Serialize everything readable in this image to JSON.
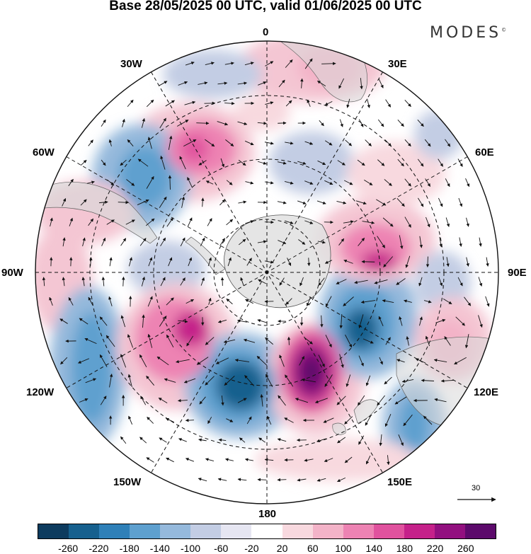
{
  "header": {
    "title": "Base 28/05/2025 00 UTC, valid 01/06/2025 00 UTC",
    "brand": "MODES",
    "brand_mark": "©"
  },
  "map": {
    "projection": "south-polar-stereographic",
    "longitude_labels": [
      "0",
      "30E",
      "60E",
      "90E",
      "120E",
      "150E",
      "180",
      "150W",
      "120W",
      "90W",
      "60W",
      "30W"
    ],
    "wind_scale_label": "30",
    "colors": {
      "neg_strong": "#1f5f8f",
      "neg_mid": "#4a8bbd",
      "neg_weak": "#b9c7de",
      "pos_weak": "#f4c6d3",
      "pos_mid": "#e46aa8",
      "pos_strong": "#7a1c7d",
      "land": "#e0e0e0"
    }
  },
  "colorbar": {
    "colors": [
      "#0d3b5e",
      "#16608e",
      "#2f80b8",
      "#5ea0cf",
      "#95b9dc",
      "#c3cde4",
      "#e6e6f2",
      "#ffffff",
      "#f8d9df",
      "#f3b3c8",
      "#ed83b3",
      "#e0529e",
      "#c5218a",
      "#92107f",
      "#5c0a6b"
    ],
    "ticks": [
      "-260",
      "-220",
      "-180",
      "-140",
      "-100",
      "-60",
      "-20",
      "20",
      "60",
      "100",
      "140",
      "180",
      "220",
      "260"
    ]
  }
}
